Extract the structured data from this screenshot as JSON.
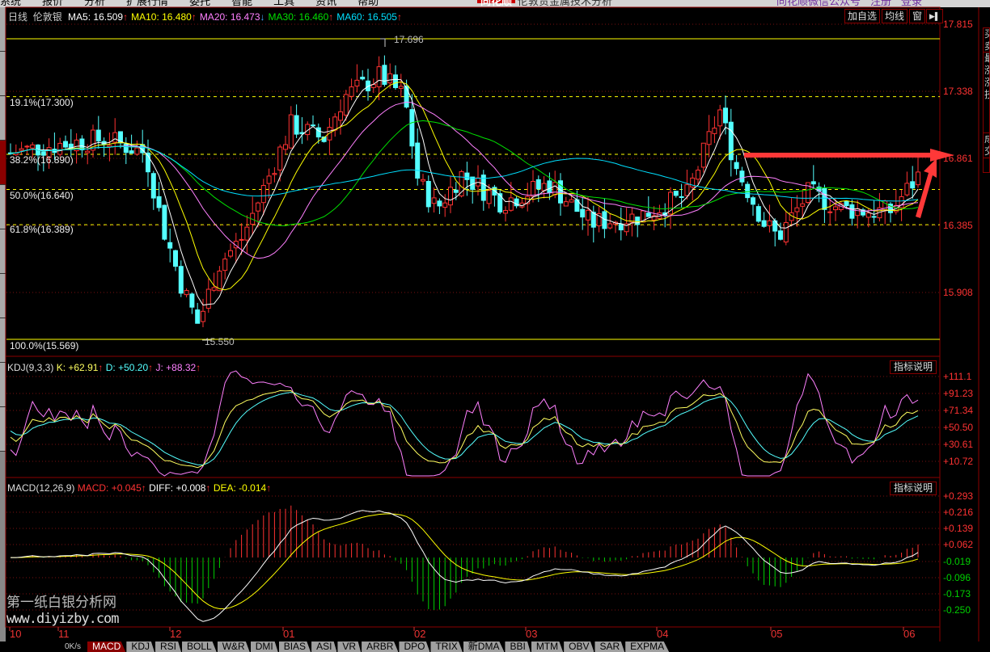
{
  "menu": {
    "items": [
      "系统",
      "报价",
      "分析",
      "扩展行情",
      "委托",
      "智能",
      "工具",
      "资讯",
      "帮助"
    ],
    "logo": "同花顺",
    "title": "伦敦贵金属技术分析",
    "right_links": [
      "同花顺微信公众号",
      "注册",
      "登录"
    ]
  },
  "main": {
    "period": "日线",
    "symbol": "伦敦银",
    "ma": [
      {
        "label": "MA5: 16.509",
        "arrow": "↑",
        "color": "#ffffff"
      },
      {
        "label": "MA10: 16.480",
        "arrow": "↑",
        "color": "#ffff00"
      },
      {
        "label": "MA20: 16.473",
        "arrow": "↓",
        "color": "#ff80ff"
      },
      {
        "label": "MA30: 16.460",
        "arrow": "↑",
        "color": "#00e000"
      },
      {
        "label": "MA60: 16.505",
        "arrow": "↑",
        "color": "#00e0ff"
      }
    ],
    "buttons": {
      "add_watch": "加自选",
      "ma_toggle": "均线",
      "window": "窗",
      "collapse": "▶▌"
    },
    "y_ticks": [
      "17.815",
      "17.338",
      "16.861",
      "16.385",
      "15.908"
    ],
    "fib_levels": [
      "19.1%(17.300)",
      "38.2%(16.890)",
      "50.0%(16.640)",
      "61.8%(16.389)",
      "100.0%(15.569)"
    ],
    "high_label": "17.696",
    "low_label": "15.550"
  },
  "right_tabs": [
    "买卖",
    "最涨涨技",
    "成交"
  ],
  "kdj": {
    "title": "KDJ(9,3,3)",
    "k": "K: +62.91",
    "d": "D: +50.20",
    "j": "J: +88.32",
    "arrow": "↑",
    "help": "指标说明",
    "y_ticks": [
      "+111.1",
      "+91.23",
      "+71.34",
      "+50.50",
      "+30.61",
      "+10.72"
    ]
  },
  "macd": {
    "title": "MACD(12,26,9)",
    "macd": "MACD: +0.045",
    "diff": "DIFF: +0.008",
    "dea": "DEA: -0.014",
    "arrow": "↑",
    "help": "指标说明",
    "y_ticks": [
      "+0.293",
      "+0.216",
      "+0.139",
      "+0.062",
      "-0.019",
      "-0.096",
      "-0.173",
      "-0.250"
    ]
  },
  "x_dates": [
    "10",
    "11",
    "12",
    "01",
    "02",
    "03",
    "04",
    "05",
    "06"
  ],
  "watermark": "第一纸白银分析网",
  "watermark_url": "www.diyizby.com",
  "speed": "0K/s",
  "indicator_tabs": [
    "MACD",
    "KDJ",
    "RSI",
    "BOLL",
    "W&R",
    "DMI",
    "BIAS",
    "ASI",
    "VR",
    "ARBR",
    "DPO",
    "TRIX",
    "新DMA",
    "BBI",
    "MTM",
    "OBV",
    "SAR",
    "EXPMA"
  ],
  "colors": {
    "up": "#ff3232",
    "down": "#54ffff",
    "axis_red": "#ff3232",
    "axis_green": "#00d000",
    "frame": "#8b0000",
    "fib": "#ffff00"
  }
}
